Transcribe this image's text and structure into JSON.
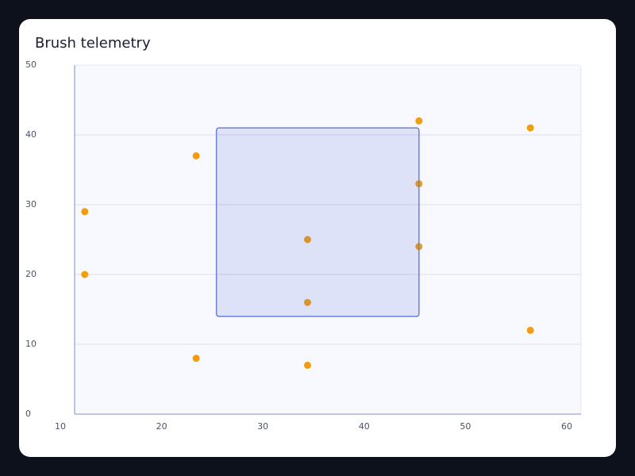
{
  "chart_data": {
    "type": "scatter",
    "title": "Brush telemetry",
    "x": [
      11,
      11,
      22,
      22,
      33,
      33,
      33,
      44,
      44,
      44,
      55,
      55
    ],
    "values": [
      29,
      20,
      37,
      8,
      25,
      16,
      7,
      42,
      33,
      24,
      41,
      12
    ],
    "color": "#f29d0c",
    "xlim": [
      10,
      60
    ],
    "xticks": [
      10,
      20,
      30,
      40,
      50,
      60
    ],
    "ylim": [
      0,
      50
    ],
    "yticks": [
      0,
      10,
      20,
      30,
      40,
      50
    ],
    "grid": true,
    "brush": {
      "x": [
        24,
        44
      ],
      "y": [
        14,
        41
      ]
    }
  }
}
